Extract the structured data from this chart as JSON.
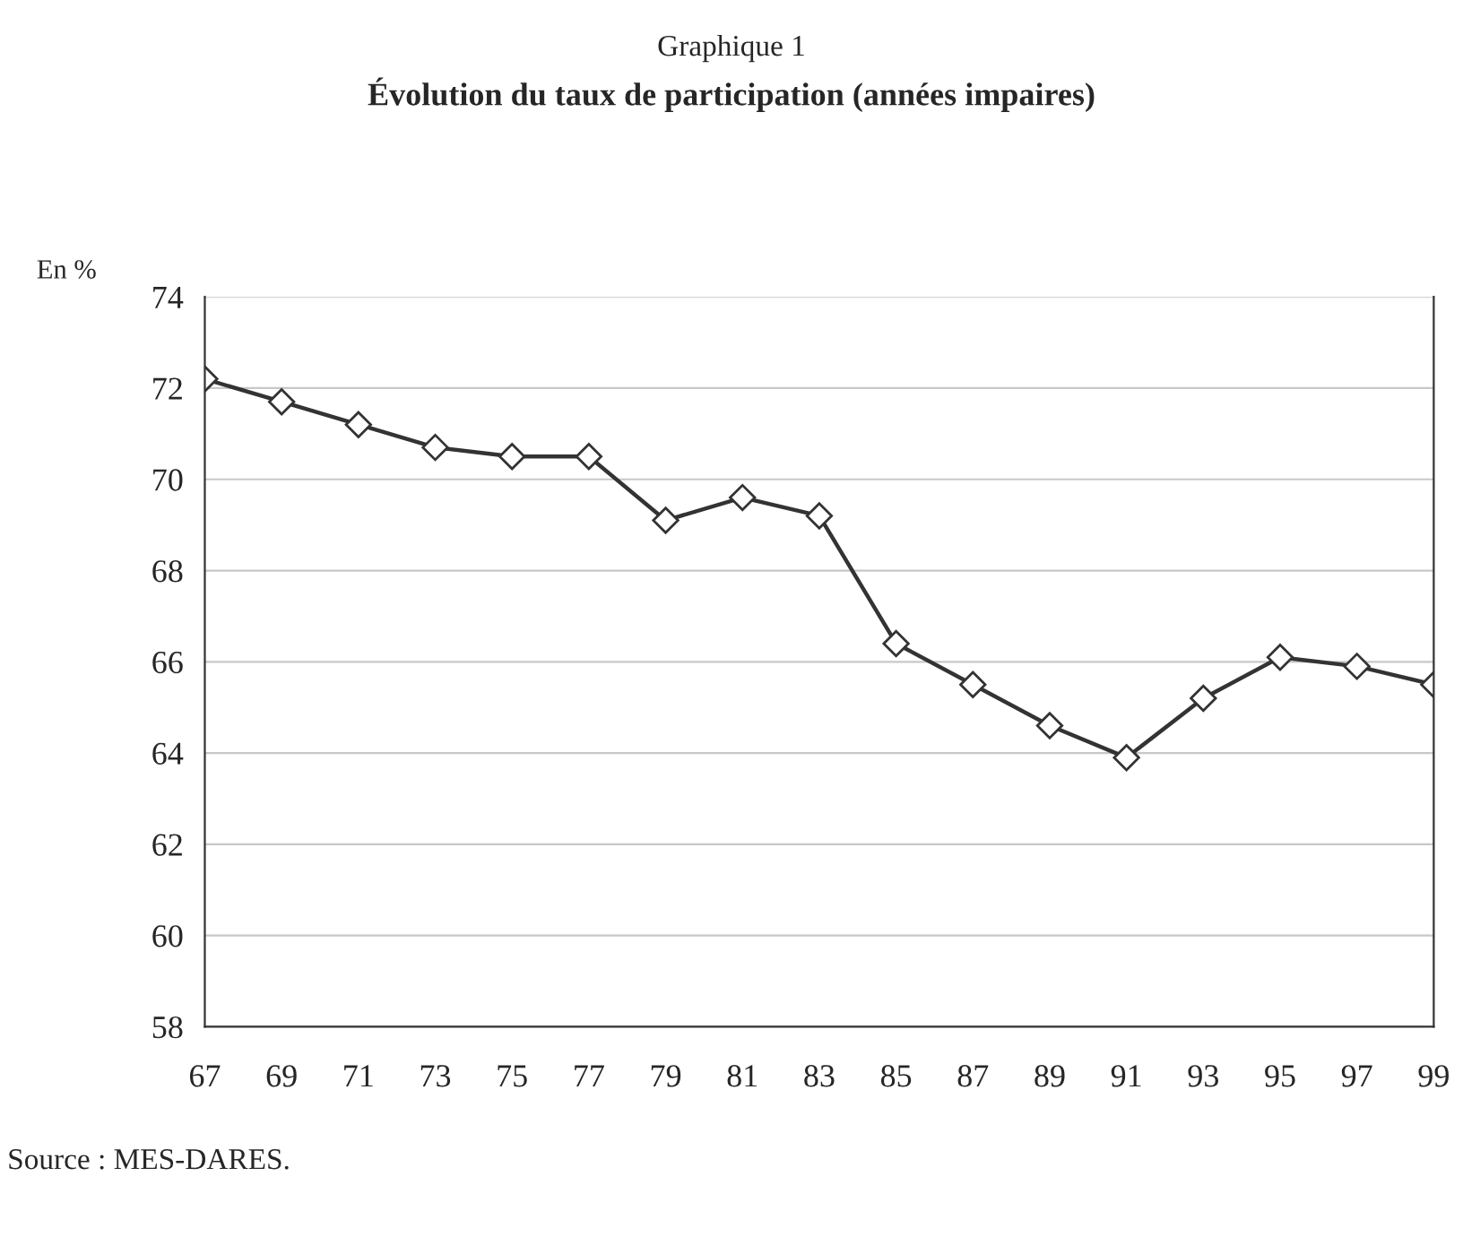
{
  "chart_data": {
    "type": "line",
    "title": "Graphique 1",
    "subtitle": "Évolution du taux de participation (années impaires)",
    "ylabel": "En %",
    "categories": [
      "67",
      "69",
      "71",
      "73",
      "75",
      "77",
      "79",
      "81",
      "83",
      "85",
      "87",
      "89",
      "91",
      "93",
      "95",
      "97",
      "99"
    ],
    "series": [
      {
        "color": "#333333",
        "values": [
          72.2,
          71.7,
          71.2,
          70.7,
          70.5,
          70.5,
          69.1,
          69.6,
          69.2,
          66.4,
          65.5,
          64.6,
          63.9,
          65.2,
          66.1,
          65.9,
          65.5
        ]
      }
    ],
    "ylim": [
      58,
      74
    ],
    "yticks": [
      58,
      60,
      62,
      64,
      66,
      68,
      70,
      72,
      74
    ],
    "grid": "y",
    "marker": "diamond",
    "line_style": "solid",
    "legend": false,
    "annotations": [
      "Source : MES-DARES."
    ]
  }
}
